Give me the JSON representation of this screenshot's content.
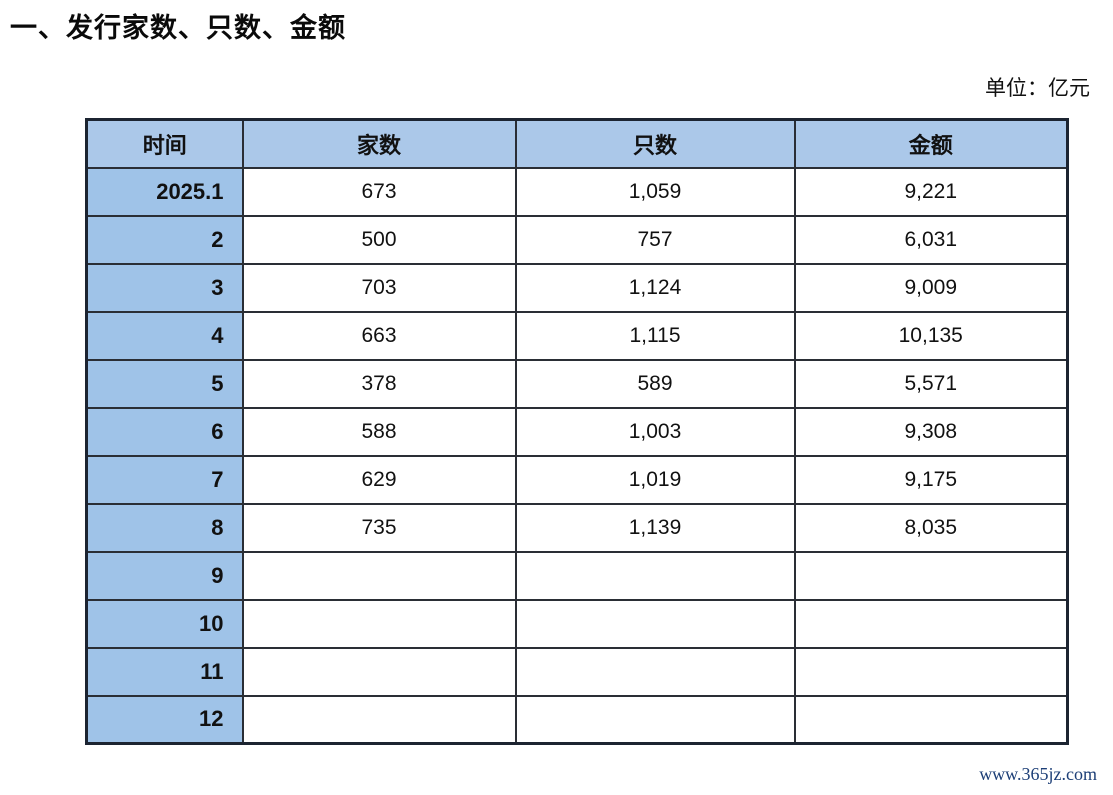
{
  "page": {
    "title": "一、发行家数、只数、金额",
    "unit_label": "单位：亿元",
    "watermark": "www.365jz.com"
  },
  "colors": {
    "header_bg": "#abc8e9",
    "time_column_bg": "#9fc3e8",
    "table_border": "#1c2431",
    "watermark_text": "#1d3f77"
  },
  "table": {
    "columns": [
      "时间",
      "家数",
      "只数",
      "金额"
    ],
    "rows": [
      [
        "2025.1",
        "673",
        "1,059",
        "9,221"
      ],
      [
        "2",
        "500",
        "757",
        "6,031"
      ],
      [
        "3",
        "703",
        "1,124",
        "9,009"
      ],
      [
        "4",
        "663",
        "1,115",
        "10,135"
      ],
      [
        "5",
        "378",
        "589",
        "5,571"
      ],
      [
        "6",
        "588",
        "1,003",
        "9,308"
      ],
      [
        "7",
        "629",
        "1,019",
        "9,175"
      ],
      [
        "8",
        "735",
        "1,139",
        "8,035"
      ],
      [
        "9",
        "",
        "",
        ""
      ],
      [
        "10",
        "",
        "",
        ""
      ],
      [
        "11",
        "",
        "",
        ""
      ],
      [
        "12",
        "",
        "",
        ""
      ]
    ]
  }
}
